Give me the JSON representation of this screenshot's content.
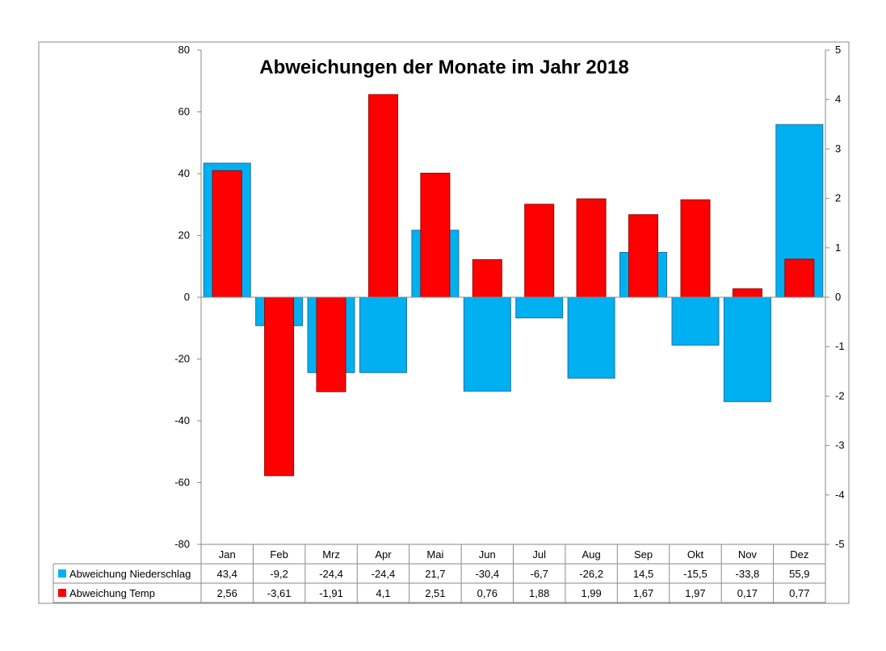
{
  "chart_data": {
    "type": "bar",
    "title": "Abweichungen der Monate im Jahr 2018",
    "categories": [
      "Jan",
      "Feb",
      "Mrz",
      "Apr",
      "Mai",
      "Jun",
      "Jul",
      "Aug",
      "Sep",
      "Okt",
      "Nov",
      "Dez"
    ],
    "series": [
      {
        "name": "Abweichung Niederschlag",
        "axis": "left",
        "color": "#00B0F0",
        "values": [
          43.4,
          -9.2,
          -24.4,
          -24.4,
          21.7,
          -30.4,
          -6.7,
          -26.2,
          14.5,
          -15.5,
          -33.8,
          55.9
        ],
        "labels": [
          "43,4",
          "-9,2",
          "-24,4",
          "-24,4",
          "21,7",
          "-30,4",
          "-6,7",
          "-26,2",
          "14,5",
          "-15,5",
          "-33,8",
          "55,9"
        ]
      },
      {
        "name": "Abweichung Temp",
        "axis": "right",
        "color": "#FF0000",
        "values": [
          2.56,
          -3.61,
          -1.91,
          4.1,
          2.51,
          0.76,
          1.88,
          1.99,
          1.67,
          1.97,
          0.17,
          0.77
        ],
        "labels": [
          "2,56",
          "-3,61",
          "-1,91",
          "4,1",
          "2,51",
          "0,76",
          "1,88",
          "1,99",
          "1,67",
          "1,97",
          "0,17",
          "0,77"
        ]
      }
    ],
    "ylim_left": [
      -80,
      80
    ],
    "yticks_left": [
      "80",
      "60",
      "40",
      "20",
      "0",
      "-20",
      "-40",
      "-60",
      "-80"
    ],
    "ylim_right": [
      -5,
      5
    ],
    "yticks_right": [
      "5",
      "4",
      "3",
      "2",
      "1",
      "0",
      "-1",
      "-2",
      "-3",
      "-4",
      "-5"
    ],
    "grid": false,
    "legend": "data-table"
  }
}
